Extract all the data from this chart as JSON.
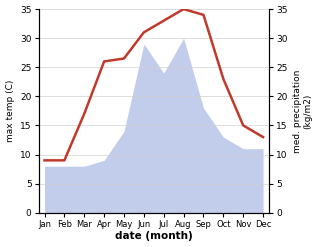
{
  "months": [
    "Jan",
    "Feb",
    "Mar",
    "Apr",
    "May",
    "Jun",
    "Jul",
    "Aug",
    "Sep",
    "Oct",
    "Nov",
    "Dec"
  ],
  "x": [
    0,
    1,
    2,
    3,
    4,
    5,
    6,
    7,
    8,
    9,
    10,
    11
  ],
  "temperature": [
    9,
    9,
    17,
    26,
    26.5,
    31,
    33,
    35,
    34,
    23,
    15,
    13
  ],
  "precipitation": [
    8,
    8,
    8,
    9,
    14,
    29,
    24,
    30,
    18,
    13,
    11,
    11
  ],
  "temp_color": "#c0392b",
  "precip_fill_color": "#b8c4e8",
  "background_color": "#ffffff",
  "ylim_left": [
    0,
    35
  ],
  "ylim_right": [
    0,
    35
  ],
  "yticks": [
    0,
    5,
    10,
    15,
    20,
    25,
    30,
    35
  ],
  "xlabel": "date (month)",
  "ylabel_left": "max temp (C)",
  "ylabel_right": "med. precipitation\n(kg/m2)",
  "temp_linewidth": 1.8,
  "figsize": [
    3.18,
    2.47
  ],
  "dpi": 100
}
